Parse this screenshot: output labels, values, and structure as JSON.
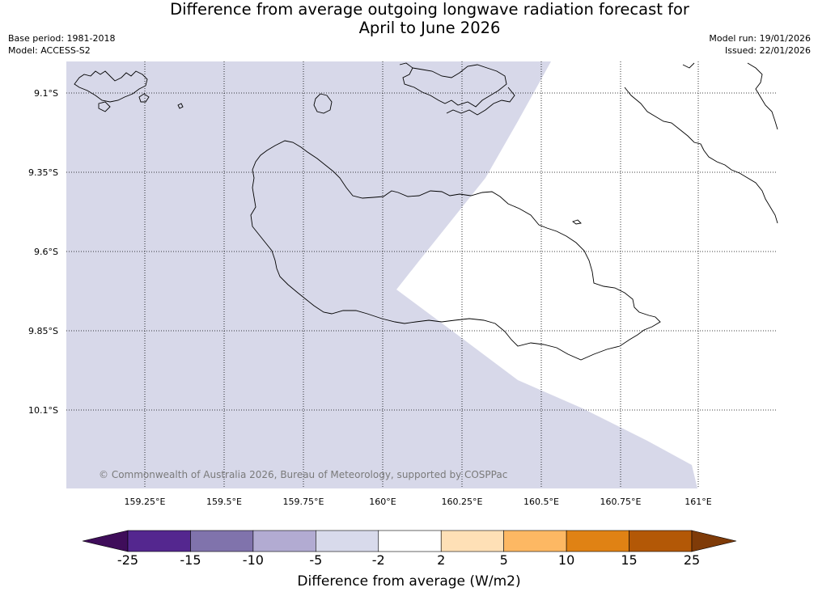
{
  "title": {
    "line1": "Difference from average outgoing longwave radiation forecast for",
    "line2": "April to June 2026"
  },
  "meta": {
    "base_period": "Base period: 1981-2018",
    "model": "Model: ACCESS-S2",
    "model_run": "Model run: 19/01/2026",
    "issued": "Issued: 22/01/2026"
  },
  "map": {
    "latitude_labels": [
      "9.1°S",
      "9.35°S",
      "9.6°S",
      "9.85°S",
      "10.1°S"
    ],
    "longitude_labels": [
      "159.25°E",
      "159.5°E",
      "159.75°E",
      "160°E",
      "160.25°E",
      "160.5°E",
      "160.75°E",
      "161°E"
    ],
    "shaded_category": "-5 to -2",
    "shaded_color": "#d7d8e9",
    "neutral_category": "-2 to 2",
    "coastline_color": "#000000",
    "gridlines": true,
    "copyright": "© Commonwealth of Australia 2026, Bureau of Meteorology, supported by COSPPac"
  },
  "colorbar": {
    "ticks": [
      "-25",
      "-15",
      "-10",
      "-5",
      "-2",
      "2",
      "5",
      "10",
      "15",
      "25"
    ],
    "colors": [
      "#3f0d5a",
      "#54278f",
      "#8073ac",
      "#b2abd2",
      "#d8daeb",
      "#ffffff",
      "#fee0b6",
      "#fdb863",
      "#e08214",
      "#b35806",
      "#7f3b08"
    ],
    "label": "Difference from average (W/m2)"
  }
}
